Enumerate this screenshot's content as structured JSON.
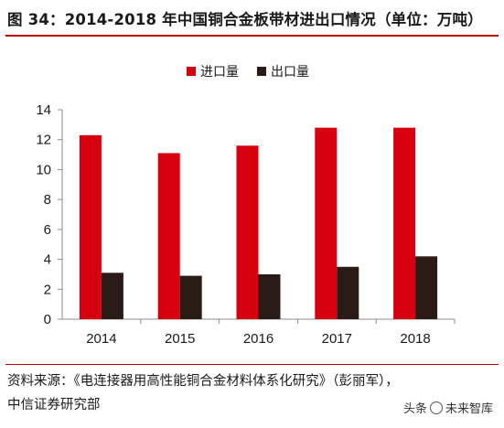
{
  "header": {
    "title": "图 34：2014-2018 年中国铜合金板带材进出口情况（单位：万吨）"
  },
  "chart_data": {
    "type": "bar",
    "categories": [
      "2014",
      "2015",
      "2016",
      "2017",
      "2018"
    ],
    "series": [
      {
        "name": "进口量",
        "values": [
          12.3,
          11.1,
          11.6,
          12.8,
          12.8
        ],
        "color": "#d7000f"
      },
      {
        "name": "出口量",
        "values": [
          3.1,
          2.9,
          3.0,
          3.5,
          4.2
        ],
        "color": "#2b1b17"
      }
    ],
    "ylim": [
      0,
      14
    ],
    "yticks": [
      "0",
      "2",
      "4",
      "6",
      "8",
      "10",
      "12",
      "14"
    ],
    "legend_position": "top-center",
    "grid": false
  },
  "footer": {
    "source_line1": "资料来源：《电连接器用高性能铜合金材料体系化研究》（彭丽军），",
    "source_line2": "中信证券研究部",
    "watermark_prefix": "头条",
    "watermark_name": "未来智库"
  }
}
